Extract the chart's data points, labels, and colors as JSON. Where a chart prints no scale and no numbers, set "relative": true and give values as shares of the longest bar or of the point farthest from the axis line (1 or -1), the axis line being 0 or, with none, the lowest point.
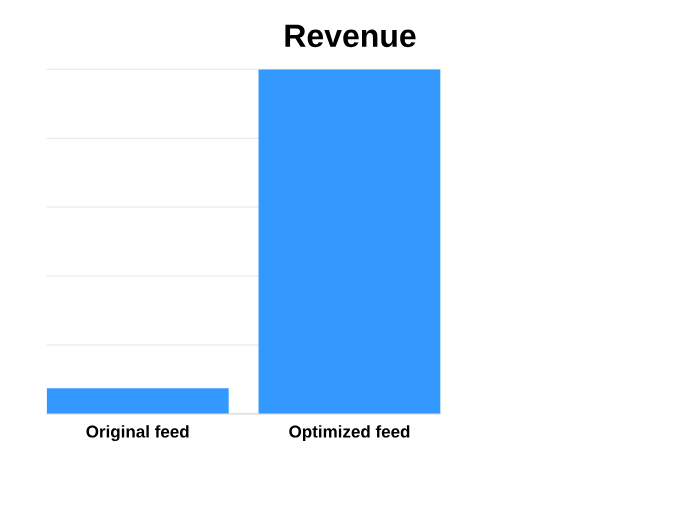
{
  "chart_data": {
    "type": "bar",
    "title": "Revenue",
    "categories": [
      "Original feed",
      "Optimized feed"
    ],
    "values": [
      0.074,
      1
    ],
    "color": "#3399ff",
    "relative": true,
    "grid": "y"
  }
}
